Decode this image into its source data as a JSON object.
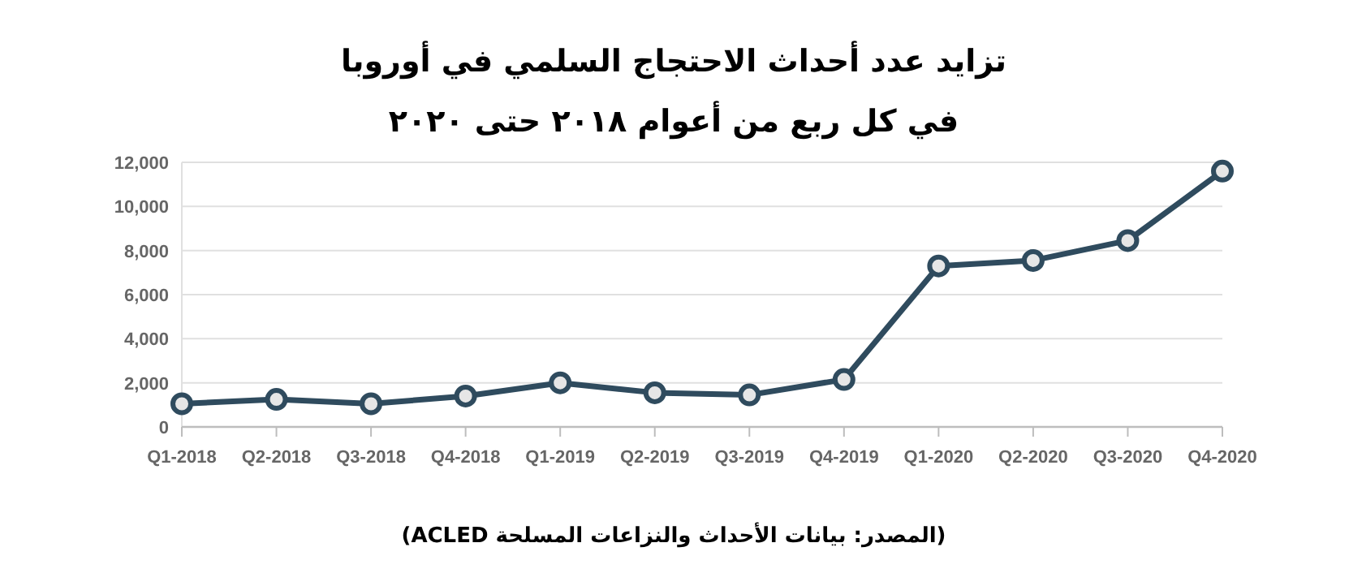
{
  "chart_data": {
    "type": "line",
    "title": "تزايد عدد أحداث الاحتجاج السلمي في أوروبا",
    "subtitle": "في كل ربع من أعوام ٢٠١٨ حتى ٢٠٢٠",
    "annotations": [
      "(المصدر: بيانات الأحداث والنزاعات المسلحة ACLED)"
    ],
    "categories": [
      "Q1-2018",
      "Q2-2018",
      "Q3-2018",
      "Q4-2018",
      "Q1-2019",
      "Q2-2019",
      "Q3-2019",
      "Q4-2019",
      "Q1-2020",
      "Q2-2020",
      "Q3-2020",
      "Q4-2020"
    ],
    "series": [
      {
        "color": "#2f4b5e",
        "values": [
          1050,
          1250,
          1050,
          1400,
          2000,
          1550,
          1450,
          2150,
          7300,
          7550,
          8450,
          11600
        ]
      }
    ],
    "ylim": [
      0,
      12000
    ],
    "yticks": [
      0,
      {
        "value": 2000,
        "label": "2,000"
      },
      {
        "value": 4000,
        "label": "4,000"
      },
      {
        "value": 6000,
        "label": "6,000"
      },
      {
        "value": 8000,
        "label": "8,000"
      },
      {
        "value": 10000,
        "label": "10,000"
      },
      {
        "value": 12000,
        "label": "12,000"
      }
    ],
    "grid": "y",
    "marker": "circle",
    "line_style": "solid"
  }
}
